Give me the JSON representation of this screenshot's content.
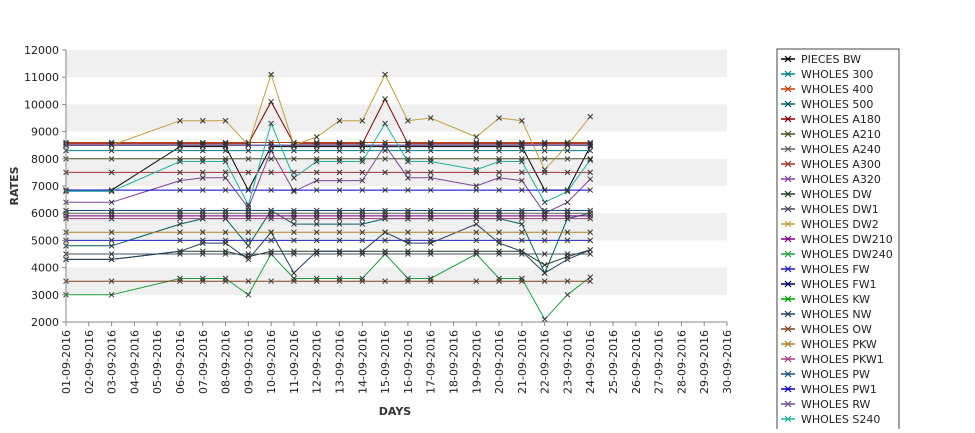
{
  "chart_data": {
    "type": "line",
    "xlabel": "DAYS",
    "ylabel": "RATES",
    "ylim": [
      2000,
      12000
    ],
    "y_ticks": [
      2000,
      3000,
      4000,
      5000,
      6000,
      7000,
      8000,
      9000,
      10000,
      11000,
      12000
    ],
    "x": [
      "01-09-2016",
      "02-09-2016",
      "03-09-2016",
      "04-09-2016",
      "05-09-2016",
      "06-09-2016",
      "07-09-2016",
      "08-09-2016",
      "09-09-2016",
      "10-09-2016",
      "11-09-2016",
      "12-09-2016",
      "13-09-2016",
      "14-09-2016",
      "15-09-2016",
      "16-09-2016",
      "17-09-2016",
      "18-09-2016",
      "19-09-2016",
      "20-09-2016",
      "21-09-2016",
      "22-09-2016",
      "23-09-2016",
      "24-09-2016",
      "25-09-2016",
      "26-09-2016",
      "27-09-2016",
      "28-09-2016",
      "29-09-2016",
      "30-09-2016"
    ],
    "grid": "alternating horizontal bands",
    "legend_position": "right",
    "marker": "x",
    "series": [
      {
        "name": "PIECES BW",
        "color": "#000000",
        "values": [
          6850,
          null,
          6850,
          null,
          null,
          8450,
          8450,
          8450,
          6850,
          8450,
          8450,
          8450,
          8450,
          8450,
          8450,
          8450,
          8450,
          null,
          8450,
          8450,
          8450,
          6850,
          6850,
          8450,
          null,
          null,
          null,
          null,
          null,
          null
        ]
      },
      {
        "name": "WHOLES 300",
        "color": "#008080",
        "values": [
          8300,
          null,
          8300,
          null,
          null,
          8300,
          8300,
          8300,
          8300,
          8300,
          8300,
          8300,
          8300,
          8300,
          8300,
          8300,
          8300,
          null,
          8300,
          8300,
          8300,
          8300,
          8300,
          8300,
          null,
          null,
          null,
          null,
          null,
          null
        ]
      },
      {
        "name": "WHOLES 400",
        "color": "#c04000",
        "values": [
          8600,
          null,
          8600,
          null,
          null,
          8600,
          8600,
          8600,
          8600,
          8600,
          8600,
          8600,
          8600,
          8600,
          8600,
          8600,
          8600,
          null,
          8600,
          8600,
          8600,
          8600,
          8600,
          8600,
          null,
          null,
          null,
          null,
          null,
          null
        ]
      },
      {
        "name": "WHOLES 500",
        "color": "#006060",
        "values": [
          4800,
          null,
          4800,
          null,
          null,
          5600,
          5800,
          5800,
          4800,
          6100,
          5600,
          5600,
          5600,
          5600,
          5800,
          5800,
          5800,
          null,
          5800,
          5800,
          5600,
          3800,
          5800,
          6000,
          null,
          null,
          null,
          null,
          null,
          null
        ]
      },
      {
        "name": "WHOLES A180",
        "color": "#800000",
        "values": [
          8550,
          null,
          8550,
          null,
          null,
          8550,
          8550,
          8550,
          8550,
          10100,
          8550,
          8550,
          8550,
          8550,
          10200,
          8550,
          8550,
          null,
          8550,
          8550,
          8550,
          8550,
          8550,
          8550,
          null,
          null,
          null,
          null,
          null,
          null
        ]
      },
      {
        "name": "WHOLES A210",
        "color": "#405020",
        "values": [
          8000,
          null,
          8000,
          null,
          null,
          8000,
          8000,
          8000,
          8000,
          8000,
          8000,
          8000,
          8000,
          8000,
          8000,
          8000,
          8000,
          null,
          8000,
          8000,
          8000,
          8000,
          8000,
          8000,
          null,
          null,
          null,
          null,
          null,
          null
        ]
      },
      {
        "name": "WHOLES A240",
        "color": "#606060",
        "values": [
          6000,
          null,
          6000,
          null,
          null,
          6000,
          6000,
          6000,
          6000,
          6000,
          6000,
          6000,
          6000,
          6000,
          6000,
          6000,
          6000,
          null,
          6000,
          6000,
          6000,
          6000,
          6000,
          6000,
          null,
          null,
          null,
          null,
          null,
          null
        ]
      },
      {
        "name": "WHOLES A300",
        "color": "#a03030",
        "values": [
          7500,
          null,
          7500,
          null,
          null,
          7500,
          7500,
          7500,
          7500,
          7500,
          7500,
          7500,
          7500,
          7500,
          7500,
          7500,
          7500,
          null,
          7500,
          7500,
          7500,
          7500,
          7500,
          7500,
          null,
          null,
          null,
          null,
          null,
          null
        ]
      },
      {
        "name": "WHOLES A320",
        "color": "#8040a0",
        "values": [
          6400,
          null,
          6400,
          null,
          null,
          7200,
          7300,
          7300,
          6200,
          8300,
          6800,
          7200,
          7200,
          7200,
          8500,
          7300,
          7300,
          null,
          7000,
          7300,
          7200,
          6000,
          6400,
          7250,
          null,
          null,
          null,
          null,
          null,
          null
        ]
      },
      {
        "name": "WHOLES DW",
        "color": "#204020",
        "values": [
          4300,
          null,
          4300,
          null,
          null,
          4600,
          4600,
          4600,
          4400,
          4600,
          4600,
          4600,
          4600,
          4600,
          4600,
          4600,
          4600,
          null,
          4600,
          4600,
          4600,
          4100,
          4400,
          4650,
          null,
          null,
          null,
          null,
          null,
          null
        ]
      },
      {
        "name": "WHOLES DW1",
        "color": "#405060",
        "values": [
          4500,
          null,
          4500,
          null,
          null,
          4500,
          4500,
          4500,
          4500,
          4500,
          4500,
          4500,
          4500,
          4500,
          4500,
          4500,
          4500,
          null,
          4500,
          4500,
          4500,
          4500,
          4500,
          4500,
          null,
          null,
          null,
          null,
          null,
          null
        ]
      },
      {
        "name": "WHOLES DW2",
        "color": "#c0a040",
        "values": [
          8500,
          null,
          8500,
          null,
          null,
          9400,
          9400,
          9400,
          8500,
          11100,
          8500,
          8800,
          9400,
          9400,
          11100,
          9400,
          9500,
          null,
          8800,
          9500,
          9400,
          7600,
          8500,
          9550,
          null,
          null,
          null,
          null,
          null,
          null
        ]
      },
      {
        "name": "WHOLES DW210",
        "color": "#800080",
        "values": [
          5900,
          null,
          5900,
          null,
          null,
          5900,
          5900,
          5900,
          5900,
          5900,
          5900,
          5900,
          5900,
          5900,
          5900,
          5900,
          5900,
          null,
          5900,
          5900,
          5900,
          5900,
          5900,
          5900,
          null,
          null,
          null,
          null,
          null,
          null
        ]
      },
      {
        "name": "WHOLES DW240",
        "color": "#20a040",
        "values": [
          3000,
          null,
          3000,
          null,
          null,
          3600,
          3600,
          3600,
          3000,
          4500,
          3600,
          3600,
          3600,
          3600,
          4500,
          3600,
          3600,
          null,
          4500,
          3600,
          3600,
          2100,
          3000,
          3650,
          null,
          null,
          null,
          null,
          null,
          null
        ]
      },
      {
        "name": "WHOLES FW",
        "color": "#2020c0",
        "values": [
          5000,
          null,
          5000,
          null,
          null,
          5000,
          5000,
          5000,
          5000,
          5000,
          5000,
          5000,
          5000,
          5000,
          5000,
          5000,
          5000,
          null,
          5000,
          5000,
          5000,
          5000,
          5000,
          5000,
          null,
          null,
          null,
          null,
          null,
          null
        ]
      },
      {
        "name": "WHOLES FW1",
        "color": "#000060",
        "values": [
          8500,
          null,
          8500,
          null,
          null,
          8500,
          8500,
          8500,
          8500,
          8500,
          8500,
          8500,
          8500,
          8500,
          8500,
          8500,
          8500,
          null,
          8500,
          8500,
          8500,
          8500,
          8500,
          8500,
          null,
          null,
          null,
          null,
          null,
          null
        ]
      },
      {
        "name": "WHOLES KW",
        "color": "#00a000",
        "values": [
          null,
          null,
          null,
          null,
          null,
          null,
          null,
          null,
          null,
          null,
          null,
          null,
          null,
          null,
          null,
          null,
          null,
          null,
          null,
          null,
          null,
          null,
          null,
          null,
          null,
          null,
          null,
          null,
          null,
          null
        ]
      },
      {
        "name": "WHOLES NW",
        "color": "#204060",
        "values": [
          4300,
          null,
          4300,
          null,
          null,
          4600,
          4900,
          4900,
          4300,
          5300,
          3800,
          4600,
          4600,
          4600,
          5300,
          4900,
          4900,
          null,
          5600,
          4900,
          4600,
          3800,
          4300,
          4650,
          null,
          null,
          null,
          null,
          null,
          null
        ]
      },
      {
        "name": "WHOLES OW",
        "color": "#804020",
        "values": [
          3500,
          null,
          3500,
          null,
          null,
          3500,
          3500,
          3500,
          3500,
          3500,
          3500,
          3500,
          3500,
          3500,
          3500,
          3500,
          3500,
          null,
          3500,
          3500,
          3500,
          3500,
          3500,
          3500,
          null,
          null,
          null,
          null,
          null,
          null
        ]
      },
      {
        "name": "WHOLES PKW",
        "color": "#b08020",
        "values": [
          5300,
          null,
          5300,
          null,
          null,
          5300,
          5300,
          5300,
          5300,
          5300,
          5300,
          5300,
          5300,
          5300,
          5300,
          5300,
          5300,
          null,
          5300,
          5300,
          5300,
          5300,
          5300,
          5300,
          null,
          null,
          null,
          null,
          null,
          null
        ]
      },
      {
        "name": "WHOLES PKW1",
        "color": "#a04080",
        "values": [
          5800,
          null,
          5800,
          null,
          null,
          5800,
          5800,
          5800,
          5800,
          5800,
          5800,
          5800,
          5800,
          5800,
          5800,
          5800,
          5800,
          null,
          5800,
          5800,
          5800,
          5800,
          5800,
          5800,
          null,
          null,
          null,
          null,
          null,
          null
        ]
      },
      {
        "name": "WHOLES PW",
        "color": "#205080",
        "values": [
          6100,
          null,
          6100,
          null,
          null,
          6100,
          6100,
          6100,
          6100,
          6100,
          6100,
          6100,
          6100,
          6100,
          6100,
          6100,
          6100,
          null,
          6100,
          6100,
          6100,
          6100,
          6100,
          6100,
          null,
          null,
          null,
          null,
          null,
          null
        ]
      },
      {
        "name": "WHOLES PW1",
        "color": "#0000c0",
        "values": [
          6850,
          null,
          6850,
          null,
          null,
          6850,
          6850,
          6850,
          6850,
          6850,
          6850,
          6850,
          6850,
          6850,
          6850,
          6850,
          6850,
          null,
          6850,
          6850,
          6850,
          6850,
          6850,
          6850,
          null,
          null,
          null,
          null,
          null,
          null
        ]
      },
      {
        "name": "WHOLES RW",
        "color": "#7050a0",
        "values": [
          8500,
          null,
          8500,
          null,
          null,
          8500,
          8500,
          8500,
          8500,
          8500,
          8500,
          8500,
          8500,
          8500,
          8500,
          8500,
          8500,
          null,
          8500,
          8500,
          8500,
          8500,
          8500,
          8500,
          null,
          null,
          null,
          null,
          null,
          null
        ]
      },
      {
        "name": "WHOLES S240",
        "color": "#20b0a0",
        "values": [
          6800,
          null,
          6800,
          null,
          null,
          7900,
          7900,
          7900,
          6300,
          9300,
          7300,
          7900,
          7900,
          7900,
          9300,
          7900,
          7900,
          null,
          7600,
          7900,
          7900,
          6400,
          6800,
          7950,
          null,
          null,
          null,
          null,
          null,
          null
        ]
      }
    ]
  }
}
